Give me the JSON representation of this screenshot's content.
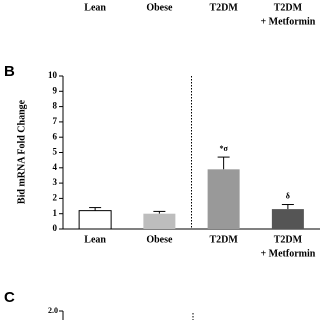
{
  "top_row": {
    "categories": [
      "Lean",
      "Obese",
      "T2DM",
      "T2DM"
    ],
    "note": "+ Metformin"
  },
  "chart_data": {
    "type": "bar",
    "panel": "B",
    "ylabel": "Bid mRNA Fold Change",
    "categories": [
      "Lean",
      "Obese",
      "T2DM",
      "T2DM"
    ],
    "category_note": "+ Metformin",
    "values": [
      1.2,
      1.0,
      3.9,
      1.3
    ],
    "errors": [
      0.2,
      0.15,
      0.8,
      0.3
    ],
    "colors": [
      "#ffffff",
      "#bdbdbd",
      "#999999",
      "#555555"
    ],
    "value_annotations": [
      null,
      null,
      "*σ",
      "δ"
    ],
    "ylim": [
      0,
      10
    ],
    "yticks": [
      0,
      1,
      2,
      3,
      4,
      5,
      6,
      7,
      8,
      9,
      10
    ]
  },
  "panel_c": {
    "label": "C",
    "tick": "2.0"
  }
}
